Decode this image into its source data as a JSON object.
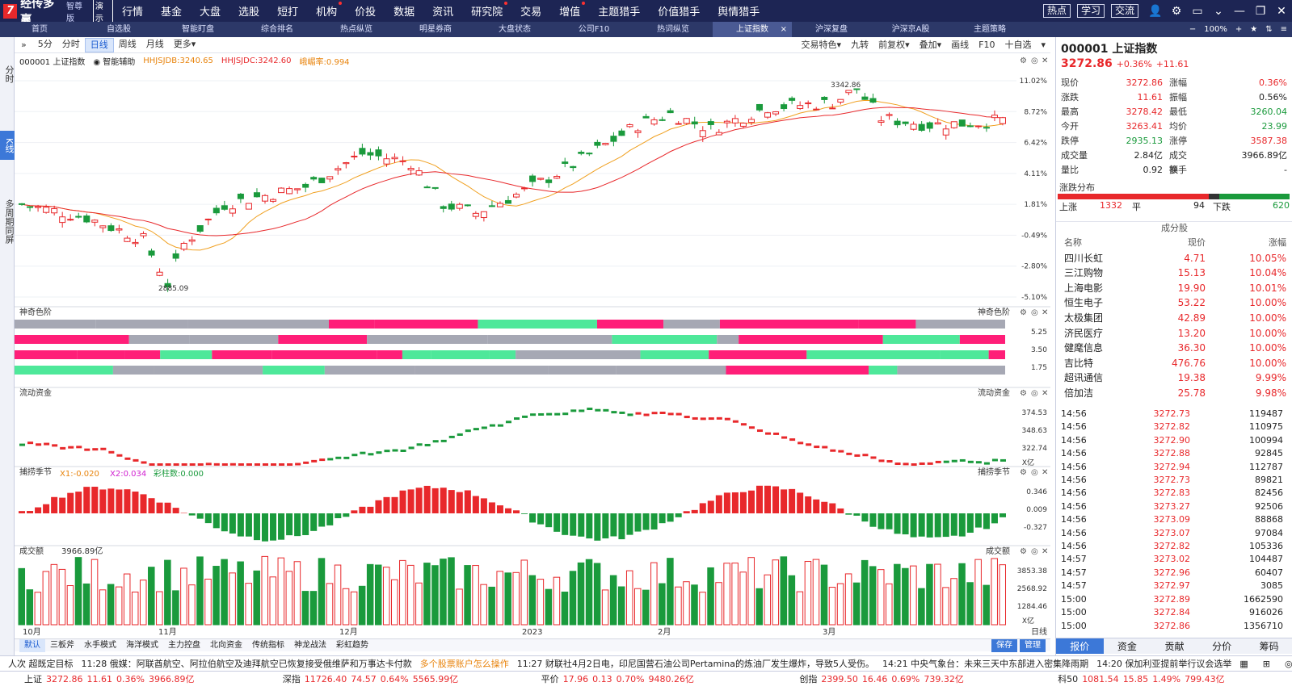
{
  "app": {
    "logo_mark": "7",
    "name": "经传多赢",
    "edition": "智尊版",
    "demo": "演示",
    "menu": [
      "行情",
      "基金",
      "大盘",
      "选股",
      "短打",
      "机构",
      "价投",
      "数据",
      "资讯",
      "研究院",
      "交易",
      "增值",
      "主题猎手",
      "价值猎手",
      "舆情猎手"
    ],
    "menu_dot": [
      false,
      false,
      false,
      false,
      false,
      true,
      false,
      false,
      false,
      true,
      false,
      true,
      false,
      false,
      false
    ],
    "top_buttons": [
      "热点",
      "学习",
      "交流"
    ],
    "top_icons": [
      "user-icon",
      "gear-icon",
      "window-icon",
      "chevron-down-icon",
      "minimize-icon",
      "restore-icon",
      "close-icon"
    ]
  },
  "tabs": [
    "首页",
    "自选股",
    "智能盯盘",
    "综合排名",
    "热点纵览",
    "明星券商",
    "大盘状态",
    "公司F10",
    "热词纵览",
    "上证指数",
    "沪深复盘",
    "沪深京A股",
    "主题策略"
  ],
  "active_tab": 9,
  "tab_right": {
    "zoom": "100%",
    "items": [
      "−",
      "+",
      "★",
      "⇅",
      "≡"
    ]
  },
  "leftbar": [
    "分时",
    "K线",
    "多周期同屏"
  ],
  "toolbar": {
    "periods": [
      "5分",
      "分时",
      "日线",
      "周线",
      "月线",
      "更多▾"
    ],
    "active": 2,
    "right": [
      "交易特色▾",
      "九转",
      "前复权▾",
      "叠加▾",
      "画线",
      "F10",
      "十自选",
      "▾"
    ]
  },
  "info": {
    "code_name": "000001 上证指数",
    "assist": "智能辅助",
    "hhjsjdb": "HHJSJDB:3240.65",
    "hhjsjdc": "HHJSJDC:3242.60",
    "emb": "峨嵋率:0.994"
  },
  "chart_data": {
    "type": "candlestick",
    "price_axis": [
      "11.02%",
      "8.72%",
      "6.42%",
      "4.11%",
      "1.81%",
      "-0.49%",
      "-2.80%",
      "-5.10%"
    ],
    "max_label": "3342.86",
    "min_label": "2885.09",
    "x_labels": [
      "10月",
      "11月",
      "12月",
      "2023",
      "2月",
      "3月"
    ],
    "panels": [
      {
        "name": "神奇色阶",
        "ticks": [
          "5.25",
          "3.50",
          "1.75"
        ]
      },
      {
        "name": "流动资金",
        "ticks": [
          "374.53",
          "348.63",
          "322.74"
        ],
        "unit": "X亿"
      },
      {
        "name": "捕捞季节",
        "x1": "X1:-0.020",
        "x2": "X2:0.034",
        "bar": "彩柱数:0.000",
        "ticks": [
          "0.346",
          "0.009",
          "-0.327"
        ]
      },
      {
        "name": "成交额",
        "value": "3966.89亿",
        "ticks": [
          "3853.38",
          "2568.92",
          "1284.46"
        ],
        "unit": "X亿"
      }
    ],
    "period_label": "日线"
  },
  "bottom_tabs": [
    "默认",
    "三板斧",
    "水手模式",
    "海洋模式",
    "主力控盘",
    "北向资金",
    "传统指标",
    "神龙战法",
    "彩虹趋势"
  ],
  "bottom_right": [
    "保存",
    "管理"
  ],
  "quote": {
    "title": "000001 上证指数",
    "price": "3272.86",
    "pct": "+0.36%",
    "chg": "+11.61",
    "rows": [
      [
        "现价",
        "3272.86",
        "red",
        "涨幅",
        "0.36%",
        "red"
      ],
      [
        "涨跌",
        "11.61",
        "red",
        "振幅",
        "0.56%",
        "dark"
      ],
      [
        "最高",
        "3278.42",
        "red",
        "最低",
        "3260.04",
        "green"
      ],
      [
        "今开",
        "3263.41",
        "red",
        "均价",
        "23.99",
        "green"
      ],
      [
        "跌停",
        "2935.13",
        "green",
        "涨停",
        "3587.38",
        "red"
      ],
      [
        "成交量",
        "2.84亿",
        "dark",
        "成交额",
        "3966.89亿",
        "dark"
      ],
      [
        "量比",
        "0.92",
        "dark",
        "换手",
        "-",
        "dark"
      ]
    ],
    "dist_title": "涨跌分布",
    "up_label": "上涨",
    "up": "1332",
    "flat_label": "平",
    "flat": "94",
    "down_label": "下跌",
    "down": "620",
    "cons_title": "成分股",
    "cons_header": [
      "名称",
      "现价",
      "涨幅"
    ],
    "cons": [
      [
        "四川长虹",
        "4.71",
        "10.05%"
      ],
      [
        "三江购物",
        "15.13",
        "10.04%"
      ],
      [
        "上海电影",
        "19.90",
        "10.01%"
      ],
      [
        "恒生电子",
        "53.22",
        "10.00%"
      ],
      [
        "太极集团",
        "42.89",
        "10.00%"
      ],
      [
        "济民医疗",
        "13.20",
        "10.00%"
      ],
      [
        "健麾信息",
        "36.30",
        "10.00%"
      ],
      [
        "吉比特",
        "476.76",
        "10.00%"
      ],
      [
        "超讯通信",
        "19.38",
        "9.99%"
      ],
      [
        "倍加洁",
        "25.78",
        "9.98%"
      ]
    ],
    "ticks": [
      [
        "14:56",
        "3272.73",
        "119487"
      ],
      [
        "14:56",
        "3272.82",
        "110975"
      ],
      [
        "14:56",
        "3272.90",
        "100994"
      ],
      [
        "14:56",
        "3272.88",
        "92845"
      ],
      [
        "14:56",
        "3272.94",
        "112787"
      ],
      [
        "14:56",
        "3272.73",
        "89821"
      ],
      [
        "14:56",
        "3272.83",
        "82456"
      ],
      [
        "14:56",
        "3273.27",
        "92506"
      ],
      [
        "14:56",
        "3273.09",
        "88868"
      ],
      [
        "14:56",
        "3273.07",
        "97084"
      ],
      [
        "14:56",
        "3272.82",
        "105336"
      ],
      [
        "14:57",
        "3273.02",
        "104487"
      ],
      [
        "14:57",
        "3272.96",
        "60407"
      ],
      [
        "14:57",
        "3272.97",
        "3085"
      ],
      [
        "15:00",
        "3272.89",
        "1662590"
      ],
      [
        "15:00",
        "3272.84",
        "916026"
      ],
      [
        "15:00",
        "3272.86",
        "1356710"
      ]
    ],
    "tabs": [
      "报价",
      "资金",
      "贡献",
      "分价",
      "筹码"
    ]
  },
  "news": [
    {
      "t": "人次 超既定目标",
      "hl": false
    },
    {
      "t": "11:28 俄媒：阿联酋航空、阿拉伯航空及迪拜航空已恢复接受俄维萨和万事达卡付款",
      "hl": false
    },
    {
      "t": "多个股票账户怎么操作",
      "hl": true
    },
    {
      "t": "11:27 财联社4月2日电，印尼国营石油公司Pertamina的炼油厂发生爆炸，导致5人受伤。",
      "hl": false
    },
    {
      "t": "14:21 中央气象台：未来三天中东部进入密集降雨期",
      "hl": false
    },
    {
      "t": "14:20 保加利亚提前举行议会选举",
      "hl": false
    }
  ],
  "indices": [
    {
      "name": "上证",
      "price": "3272.86",
      "chg": "11.61",
      "pct": "0.36%",
      "amt": "3966.89亿",
      "cls": "red"
    },
    {
      "name": "深指",
      "price": "11726.40",
      "chg": "74.57",
      "pct": "0.64%",
      "amt": "5565.99亿",
      "cls": "red"
    },
    {
      "name": "平价",
      "price": "17.96",
      "chg": "0.13",
      "pct": "0.70%",
      "amt": "9480.26亿",
      "cls": "red"
    },
    {
      "name": "创指",
      "price": "2399.50",
      "chg": "16.46",
      "pct": "0.69%",
      "amt": "739.32亿",
      "cls": "red"
    },
    {
      "name": "科50",
      "price": "1081.54",
      "chg": "15.85",
      "pct": "1.49%",
      "amt": "799.43亿",
      "cls": "red"
    }
  ]
}
